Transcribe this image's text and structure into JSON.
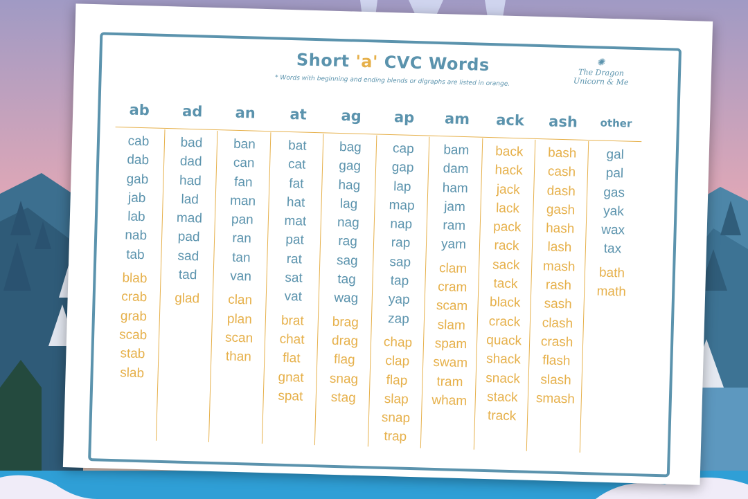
{
  "title_pre": "Short",
  "title_accent": "'a'",
  "title_post": "CVC Words",
  "subtitle": "* Words with beginning and ending blends or digraphs are listed in orange.",
  "logo_text": "The Dragon Unicorn & Me",
  "colors": {
    "blue": "#5b93ad",
    "orange": "#e6b04a"
  },
  "columns": [
    {
      "header": "ab",
      "blue": [
        "cab",
        "dab",
        "gab",
        "jab",
        "lab",
        "nab",
        "tab"
      ],
      "orange": [
        "blab",
        "crab",
        "grab",
        "scab",
        "stab",
        "slab"
      ]
    },
    {
      "header": "ad",
      "blue": [
        "bad",
        "dad",
        "had",
        "lad",
        "mad",
        "pad",
        "sad",
        "tad"
      ],
      "orange": [
        "glad"
      ]
    },
    {
      "header": "an",
      "blue": [
        "ban",
        "can",
        "fan",
        "man",
        "pan",
        "ran",
        "tan",
        "van"
      ],
      "orange": [
        "clan",
        "plan",
        "scan",
        "than"
      ]
    },
    {
      "header": "at",
      "blue": [
        "bat",
        "cat",
        "fat",
        "hat",
        "mat",
        "pat",
        "rat",
        "sat",
        "vat"
      ],
      "orange": [
        "brat",
        "chat",
        "flat",
        "gnat",
        "spat"
      ]
    },
    {
      "header": "ag",
      "blue": [
        "bag",
        "gag",
        "hag",
        "lag",
        "nag",
        "rag",
        "sag",
        "tag",
        "wag"
      ],
      "orange": [
        "brag",
        "drag",
        "flag",
        "snag",
        "stag"
      ]
    },
    {
      "header": "ap",
      "blue": [
        "cap",
        "gap",
        "lap",
        "map",
        "nap",
        "rap",
        "sap",
        "tap",
        "yap",
        "zap"
      ],
      "orange": [
        "chap",
        "clap",
        "flap",
        "slap",
        "snap",
        "trap"
      ]
    },
    {
      "header": "am",
      "blue": [
        "bam",
        "dam",
        "ham",
        "jam",
        "ram",
        "yam"
      ],
      "orange": [
        "clam",
        "cram",
        "scam",
        "slam",
        "spam",
        "swam",
        "tram",
        "wham"
      ]
    },
    {
      "header": "ack",
      "blue": [],
      "orange": [
        "back",
        "hack",
        "jack",
        "lack",
        "pack",
        "rack",
        "sack",
        "tack",
        "black",
        "crack",
        "quack",
        "shack",
        "snack",
        "stack",
        "track"
      ]
    },
    {
      "header": "ash",
      "blue": [],
      "orange": [
        "bash",
        "cash",
        "dash",
        "gash",
        "hash",
        "lash",
        "mash",
        "rash",
        "sash",
        "clash",
        "crash",
        "flash",
        "slash",
        "smash"
      ]
    },
    {
      "header": "other",
      "blue": [
        "gal",
        "pal",
        "gas",
        "yak",
        "wax",
        "tax"
      ],
      "orange": [
        "bath",
        "math"
      ]
    }
  ]
}
